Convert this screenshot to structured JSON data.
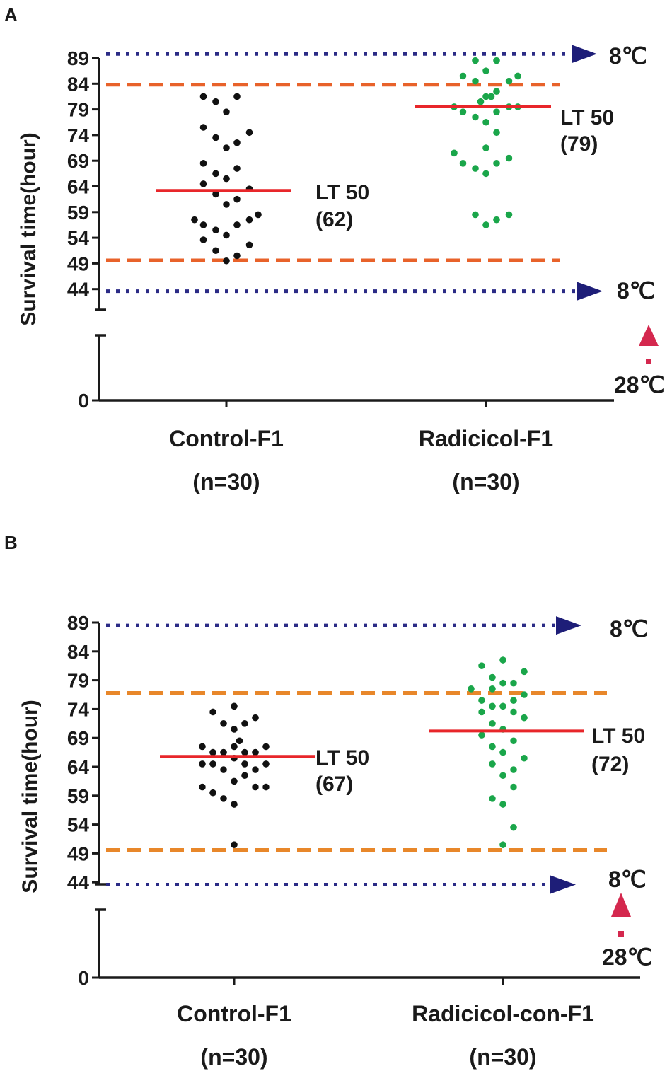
{
  "colors": {
    "axis": "#1a1a1a",
    "control_dot": "#111111",
    "treated_dot": "#1aa64a",
    "median_line": "#e8262a",
    "lt_dash": "#e8622a",
    "lt_dash_b": "#e8872a",
    "temp_dotted": "#2b2b86",
    "temp_arrow": "#1e1e78",
    "warm_marker": "#d4284e"
  },
  "chart_data": [
    {
      "type": "scatter",
      "panel_label": "A",
      "ylabel": "Survival time(hour)",
      "yticks": [
        "89",
        "84",
        "79",
        "74",
        "69",
        "64",
        "59",
        "54",
        "49",
        "44"
      ],
      "ybreak_tick": "0",
      "categories": [
        {
          "name": "Control-F1",
          "n_label": "(n=30)"
        },
        {
          "name": "Radicicol-F1",
          "n_label": "(n=30)"
        }
      ],
      "series": [
        {
          "name": "Control-F1",
          "points": [
            {
              "offset": -1.8,
              "y": 57.5
            },
            {
              "offset": -1.3,
              "y": 56.5
            },
            {
              "offset": -1.3,
              "y": 53.6
            },
            {
              "offset": -0.6,
              "y": 51.5
            },
            {
              "offset": -0.6,
              "y": 55.5
            },
            {
              "offset": 0.0,
              "y": 49.5
            },
            {
              "offset": 0.0,
              "y": 54.5
            },
            {
              "offset": 0.6,
              "y": 50.5
            },
            {
              "offset": 0.6,
              "y": 56.5
            },
            {
              "offset": 1.3,
              "y": 52.6
            },
            {
              "offset": 1.3,
              "y": 57.5
            },
            {
              "offset": 1.8,
              "y": 58.5
            },
            {
              "offset": -1.3,
              "y": 64.5
            },
            {
              "offset": -0.6,
              "y": 66.5
            },
            {
              "offset": 0.0,
              "y": 65.5
            },
            {
              "offset": 0.6,
              "y": 67.5
            },
            {
              "offset": 1.3,
              "y": 63.5
            },
            {
              "offset": -0.6,
              "y": 62.5
            },
            {
              "offset": 0.0,
              "y": 60.5
            },
            {
              "offset": 0.6,
              "y": 61.5
            },
            {
              "offset": -1.3,
              "y": 68.5
            },
            {
              "offset": -1.3,
              "y": 75.5
            },
            {
              "offset": -0.6,
              "y": 73.5
            },
            {
              "offset": 0.0,
              "y": 71.5
            },
            {
              "offset": 0.6,
              "y": 72.5
            },
            {
              "offset": 1.3,
              "y": 74.5
            },
            {
              "offset": -1.3,
              "y": 81.5
            },
            {
              "offset": -0.6,
              "y": 80.5
            },
            {
              "offset": 0.0,
              "y": 78.5
            },
            {
              "offset": 0.6,
              "y": 81.5
            }
          ],
          "median": 63.2,
          "lt50_label": "LT 50",
          "lt50_value": "(62)"
        },
        {
          "name": "Radicicol-F1",
          "points": [
            {
              "offset": -1.8,
              "y": 70.5
            },
            {
              "offset": -1.3,
              "y": 68.5
            },
            {
              "offset": -0.6,
              "y": 67.5
            },
            {
              "offset": 0.0,
              "y": 66.5
            },
            {
              "offset": 0.6,
              "y": 68.5
            },
            {
              "offset": 1.3,
              "y": 69.5
            },
            {
              "offset": -0.6,
              "y": 58.5
            },
            {
              "offset": 0.0,
              "y": 56.5
            },
            {
              "offset": 0.6,
              "y": 57.5
            },
            {
              "offset": 1.3,
              "y": 58.5
            },
            {
              "offset": 0.0,
              "y": 71.5
            },
            {
              "offset": 0.6,
              "y": 74.5
            },
            {
              "offset": -0.6,
              "y": 77.5
            },
            {
              "offset": 0.0,
              "y": 76.5
            },
            {
              "offset": -1.3,
              "y": 78.5
            },
            {
              "offset": 0.6,
              "y": 78.5
            },
            {
              "offset": -1.8,
              "y": 79.5
            },
            {
              "offset": 1.3,
              "y": 79.5
            },
            {
              "offset": 1.8,
              "y": 79.5
            },
            {
              "offset": -0.3,
              "y": 80.5
            },
            {
              "offset": 0.3,
              "y": 81.5
            },
            {
              "offset": 0.0,
              "y": 81.5
            },
            {
              "offset": 0.6,
              "y": 82.5
            },
            {
              "offset": -1.3,
              "y": 85.5
            },
            {
              "offset": -0.6,
              "y": 84.5
            },
            {
              "offset": 0.0,
              "y": 86.5
            },
            {
              "offset": 0.6,
              "y": 88.5
            },
            {
              "offset": 1.3,
              "y": 84.5
            },
            {
              "offset": 1.8,
              "y": 85.5
            },
            {
              "offset": -0.6,
              "y": 88.5
            }
          ],
          "median": 79.6,
          "lt50_label": "LT 50",
          "lt50_value": "(79)"
        }
      ],
      "lt_upper": 83.8,
      "lt_lower": 49.6,
      "temp_top": {
        "y": 89.8,
        "label": "8℃"
      },
      "temp_bottom": {
        "y": 43.6,
        "label": "8℃"
      },
      "warm_label": "28℃",
      "ylim": [
        44,
        89
      ]
    },
    {
      "type": "scatter",
      "panel_label": "B",
      "ylabel": "Survival time(hour)",
      "yticks": [
        "89",
        "84",
        "79",
        "74",
        "69",
        "64",
        "59",
        "54",
        "49",
        "44"
      ],
      "ybreak_tick": "0",
      "categories": [
        {
          "name": "Control-F1",
          "n_label": "(n=30)"
        },
        {
          "name": "Radicicol-con-F1",
          "n_label": "(n=30)"
        }
      ],
      "series": [
        {
          "name": "Control-F1",
          "points": [
            {
              "offset": -1.8,
              "y": 67.5
            },
            {
              "offset": -1.2,
              "y": 66.5
            },
            {
              "offset": -0.6,
              "y": 66.5
            },
            {
              "offset": 0.0,
              "y": 67.5
            },
            {
              "offset": 0.6,
              "y": 66.5
            },
            {
              "offset": 1.2,
              "y": 66.5
            },
            {
              "offset": 1.8,
              "y": 67.5
            },
            {
              "offset": -1.8,
              "y": 64.5
            },
            {
              "offset": -1.2,
              "y": 64.5
            },
            {
              "offset": -0.6,
              "y": 63.5
            },
            {
              "offset": 0.0,
              "y": 65.5
            },
            {
              "offset": 0.6,
              "y": 64.5
            },
            {
              "offset": 1.2,
              "y": 63.5
            },
            {
              "offset": 1.8,
              "y": 64.5
            },
            {
              "offset": -1.8,
              "y": 60.5
            },
            {
              "offset": -1.2,
              "y": 59.5
            },
            {
              "offset": -0.6,
              "y": 58.5
            },
            {
              "offset": 0.0,
              "y": 61.5
            },
            {
              "offset": 0.6,
              "y": 62.5
            },
            {
              "offset": 1.2,
              "y": 60.5
            },
            {
              "offset": 1.8,
              "y": 60.5
            },
            {
              "offset": 0.0,
              "y": 57.5
            },
            {
              "offset": 0.0,
              "y": 50.5
            },
            {
              "offset": -1.2,
              "y": 73.5
            },
            {
              "offset": -0.6,
              "y": 71.5
            },
            {
              "offset": 0.0,
              "y": 70.5
            },
            {
              "offset": 0.6,
              "y": 71.5
            },
            {
              "offset": 1.2,
              "y": 72.5
            },
            {
              "offset": 0.0,
              "y": 74.5
            },
            {
              "offset": 0.3,
              "y": 68.5
            }
          ],
          "median": 65.8,
          "lt50_label": "LT 50",
          "lt50_value": "(67)"
        },
        {
          "name": "Radicicol-con-F1",
          "points": [
            {
              "offset": -1.8,
              "y": 77.5
            },
            {
              "offset": -1.2,
              "y": 81.5
            },
            {
              "offset": -0.6,
              "y": 79.5
            },
            {
              "offset": 0.0,
              "y": 82.5
            },
            {
              "offset": 0.6,
              "y": 78.5
            },
            {
              "offset": 1.2,
              "y": 80.5
            },
            {
              "offset": -1.2,
              "y": 75.5
            },
            {
              "offset": -0.6,
              "y": 77.5
            },
            {
              "offset": 0.0,
              "y": 78.5
            },
            {
              "offset": 0.6,
              "y": 75.5
            },
            {
              "offset": 1.2,
              "y": 76.5
            },
            {
              "offset": -1.2,
              "y": 73.5
            },
            {
              "offset": -0.6,
              "y": 74.5
            },
            {
              "offset": 0.0,
              "y": 74.5
            },
            {
              "offset": 0.6,
              "y": 73.5
            },
            {
              "offset": 1.2,
              "y": 72.5
            },
            {
              "offset": -1.2,
              "y": 69.5
            },
            {
              "offset": -0.6,
              "y": 71.5
            },
            {
              "offset": 0.0,
              "y": 70.5
            },
            {
              "offset": 0.6,
              "y": 68.5
            },
            {
              "offset": 1.2,
              "y": 65.5
            },
            {
              "offset": -0.6,
              "y": 67.5
            },
            {
              "offset": 0.0,
              "y": 66.5
            },
            {
              "offset": -0.6,
              "y": 64.5
            },
            {
              "offset": 0.6,
              "y": 63.5
            },
            {
              "offset": 0.0,
              "y": 62.5
            },
            {
              "offset": 0.6,
              "y": 60.5
            },
            {
              "offset": -0.6,
              "y": 58.5
            },
            {
              "offset": 0.0,
              "y": 57.5
            },
            {
              "offset": 0.6,
              "y": 53.5
            }
          ],
          "extra_points": [
            {
              "offset": 0.0,
              "y": 50.5
            }
          ],
          "median": 70.2,
          "lt50_label": "LT 50",
          "lt50_value": "(72)"
        }
      ],
      "lt_upper": 76.8,
      "lt_lower": 49.6,
      "temp_top": {
        "y": 88.5,
        "label": "8℃"
      },
      "temp_bottom": {
        "y": 43.6,
        "label": "8℃"
      },
      "warm_label": "28℃",
      "ylim": [
        44,
        89
      ]
    }
  ]
}
